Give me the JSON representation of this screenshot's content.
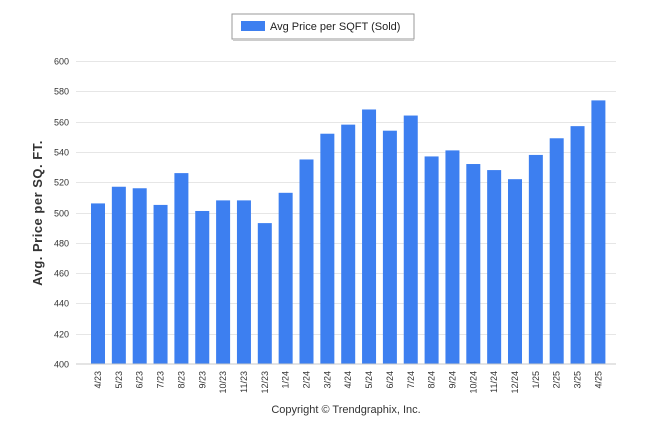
{
  "chart_data": {
    "type": "bar",
    "ylabel": "Avg. Price per SQ. FT.",
    "ylim": [
      400,
      600
    ],
    "yticks": [
      400,
      420,
      440,
      460,
      480,
      500,
      520,
      540,
      560,
      580,
      600
    ],
    "grid": true,
    "legend_position": "top-center",
    "bar_color": "#3d7ff0",
    "categories": [
      "4/23",
      "5/23",
      "6/23",
      "7/23",
      "8/23",
      "9/23",
      "10/23",
      "11/23",
      "12/23",
      "1/24",
      "2/24",
      "3/24",
      "4/24",
      "5/24",
      "6/24",
      "7/24",
      "8/24",
      "9/24",
      "10/24",
      "11/24",
      "12/24",
      "1/25",
      "2/25",
      "3/25",
      "4/25"
    ],
    "series": [
      {
        "name": "Avg Price per SQFT (Sold)",
        "values": [
          506,
          517,
          516,
          505,
          526,
          501,
          508,
          508,
          493,
          513,
          535,
          552,
          558,
          568,
          554,
          564,
          537,
          541,
          532,
          528,
          522,
          538,
          549,
          557,
          574
        ]
      }
    ]
  },
  "footer": {
    "copyright": "Copyright © Trendgraphix, Inc."
  }
}
